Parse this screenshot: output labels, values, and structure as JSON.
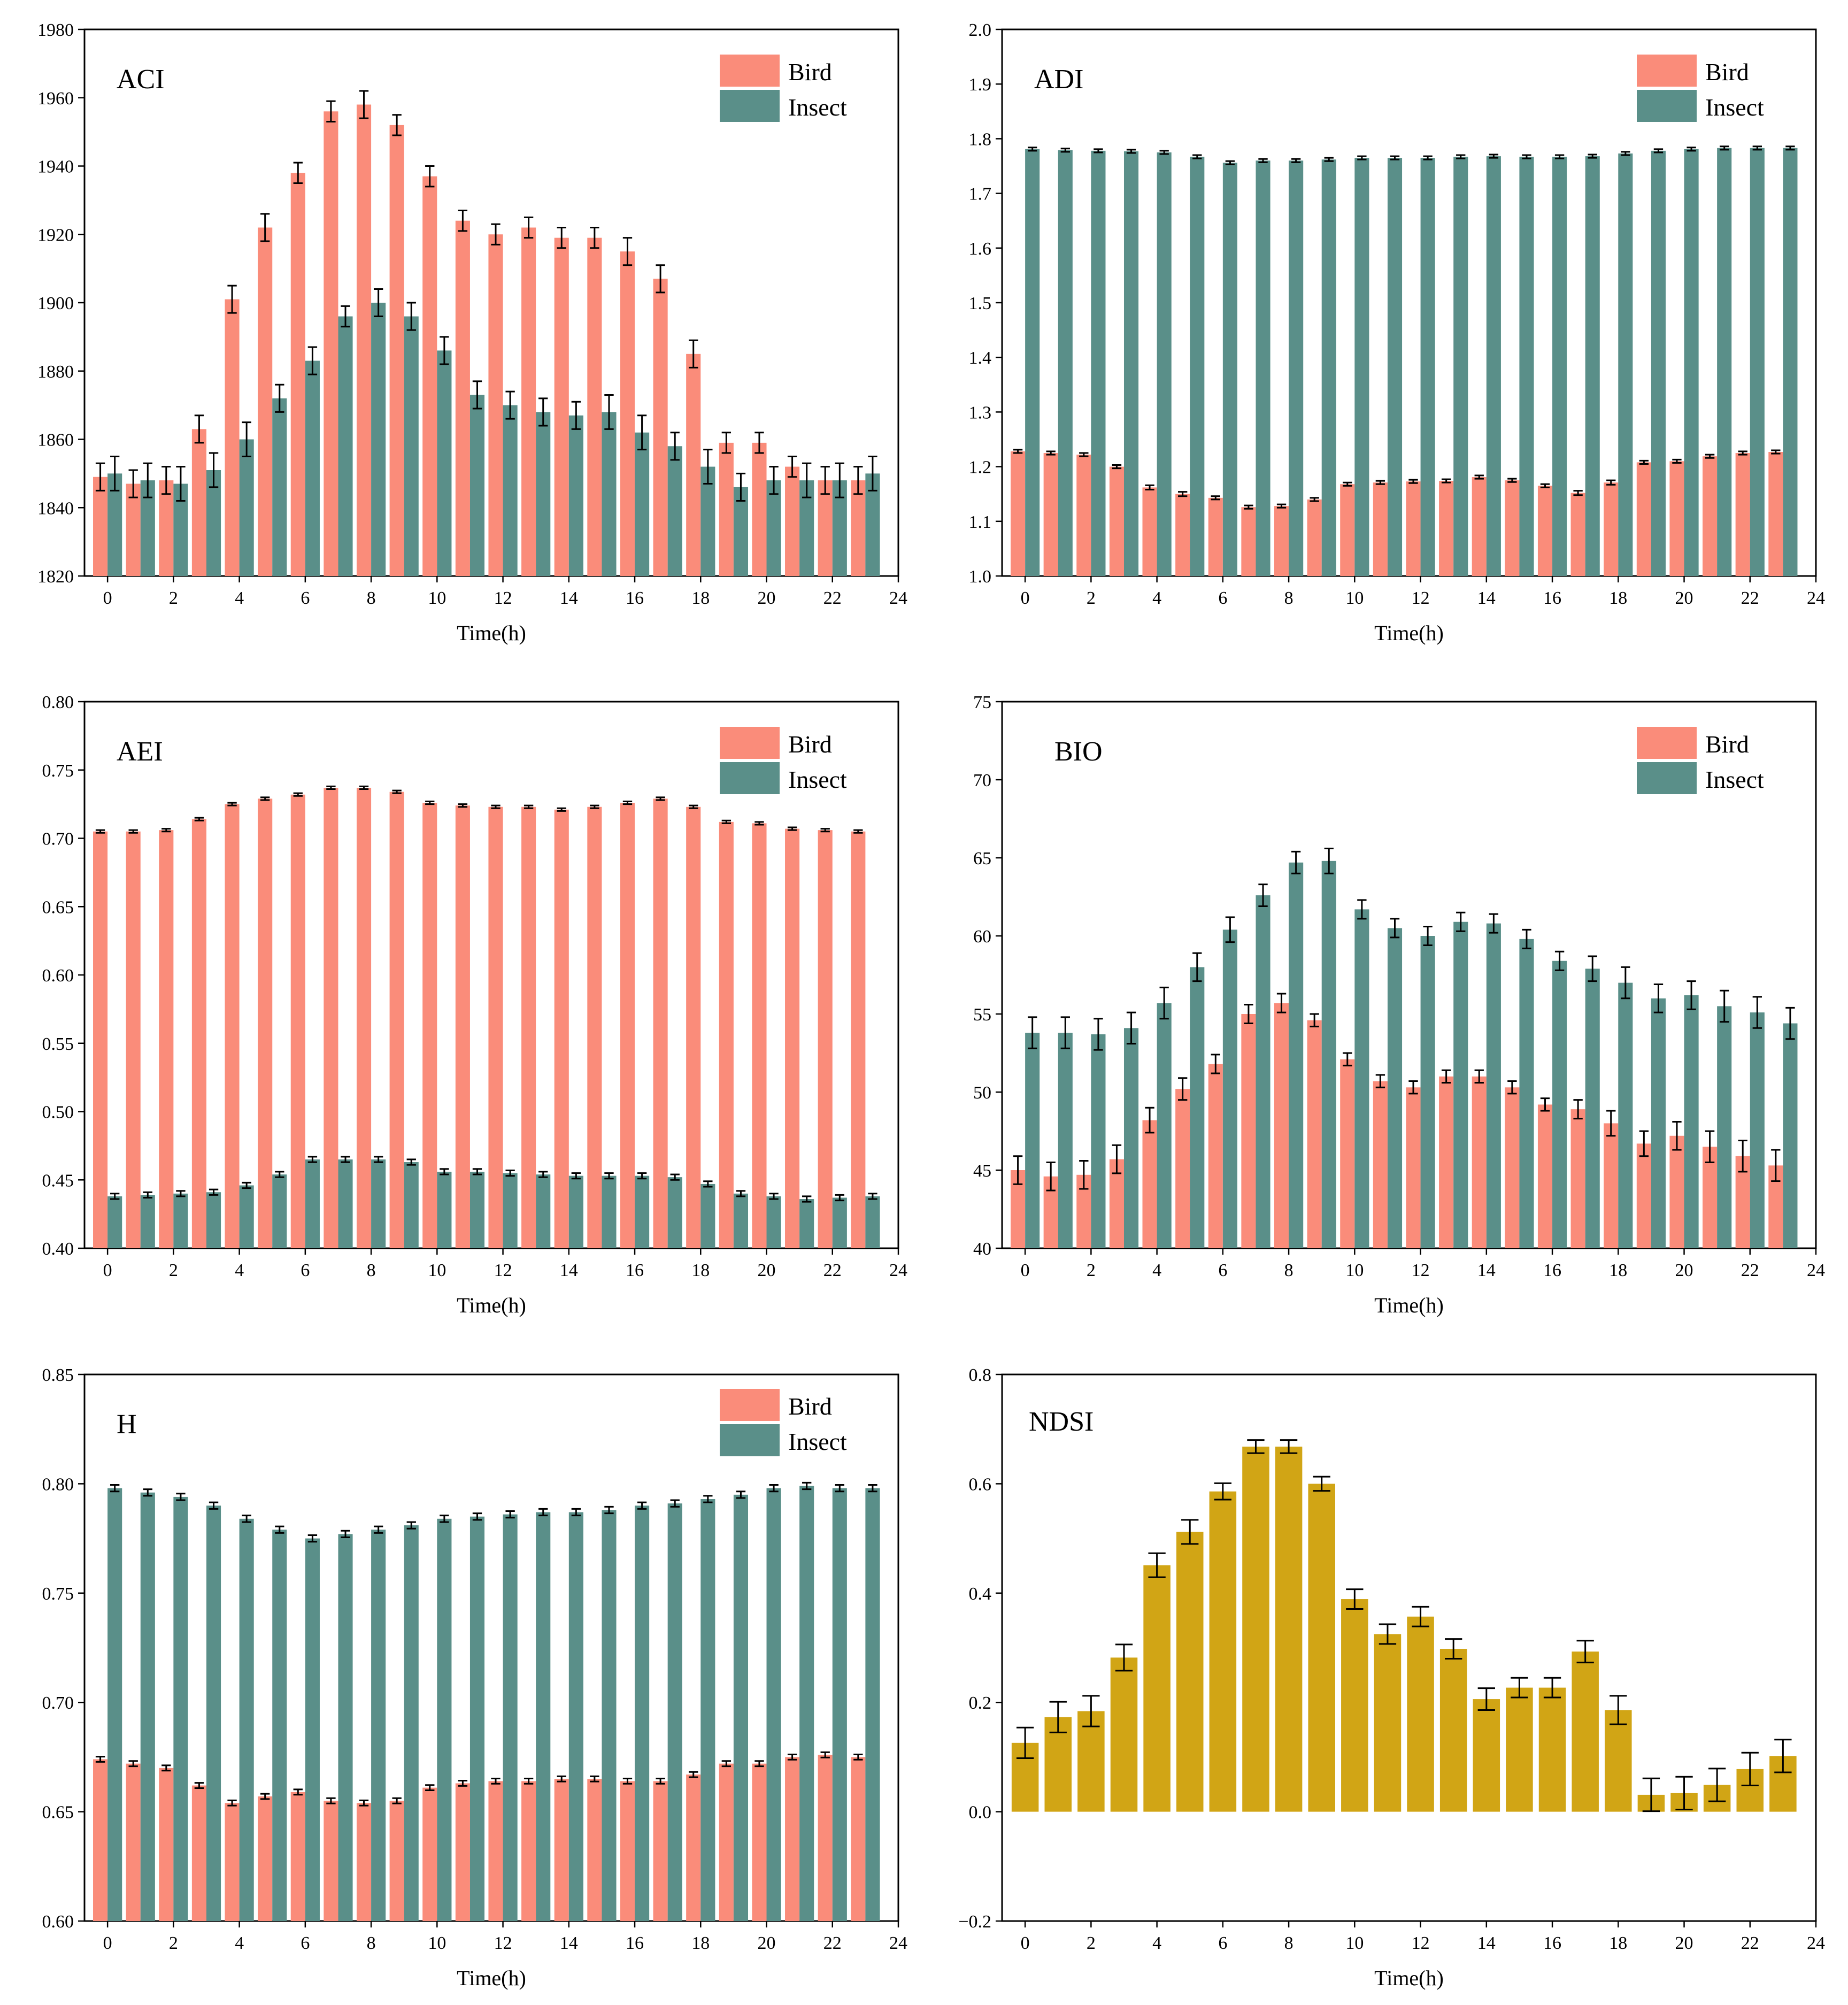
{
  "colors": {
    "bird": "#FA8C7A",
    "insect": "#5A8F89",
    "ndsi": "#D1A515",
    "axis": "#000000"
  },
  "legend": {
    "bird": "Bird",
    "insect": "Insect"
  },
  "chart_data": [
    {
      "type": "bar",
      "title": "ACI",
      "xlabel": "Time(h)",
      "ylabel": "",
      "xlim": [
        -0.7,
        24
      ],
      "xticks": [
        "0",
        "2",
        "4",
        "6",
        "8",
        "10",
        "12",
        "14",
        "16",
        "18",
        "20",
        "22",
        "24"
      ],
      "ylim": [
        1820,
        1980
      ],
      "yticks": [
        "1820",
        "1840",
        "1860",
        "1880",
        "1900",
        "1920",
        "1940",
        "1960",
        "1980"
      ],
      "legend_position": "top-right",
      "categories": [
        "0",
        "1",
        "2",
        "3",
        "4",
        "5",
        "6",
        "7",
        "8",
        "9",
        "10",
        "11",
        "12",
        "13",
        "14",
        "15",
        "16",
        "17",
        "18",
        "19",
        "20",
        "21",
        "22",
        "23"
      ],
      "series": [
        {
          "name": "Bird",
          "values": [
            1849,
            1847,
            1848,
            1863,
            1901,
            1922,
            1938,
            1956,
            1958,
            1952,
            1937,
            1924,
            1920,
            1922,
            1919,
            1919,
            1915,
            1907,
            1885,
            1859,
            1859,
            1852,
            1848,
            1848
          ],
          "errors": [
            4,
            4,
            4,
            4,
            4,
            4,
            3,
            3,
            4,
            3,
            3,
            3,
            3,
            3,
            3,
            3,
            4,
            4,
            4,
            3,
            3,
            3,
            4,
            4
          ]
        },
        {
          "name": "Insect",
          "values": [
            1850,
            1848,
            1847,
            1851,
            1860,
            1872,
            1883,
            1896,
            1900,
            1896,
            1886,
            1873,
            1870,
            1868,
            1867,
            1868,
            1862,
            1858,
            1852,
            1846,
            1848,
            1848,
            1848,
            1850
          ],
          "errors": [
            5,
            5,
            5,
            5,
            5,
            4,
            4,
            3,
            4,
            4,
            4,
            4,
            4,
            4,
            4,
            5,
            5,
            4,
            5,
            4,
            4,
            5,
            5,
            5
          ]
        }
      ]
    },
    {
      "type": "bar",
      "title": "ADI",
      "xlabel": "Time(h)",
      "ylabel": "",
      "xlim": [
        -0.7,
        24
      ],
      "xticks": [
        "0",
        "2",
        "4",
        "6",
        "8",
        "10",
        "12",
        "14",
        "16",
        "18",
        "20",
        "22",
        "24"
      ],
      "ylim": [
        1.0,
        2.0
      ],
      "yticks": [
        "1.0",
        "1.1",
        "1.2",
        "1.3",
        "1.4",
        "1.5",
        "1.6",
        "1.7",
        "1.8",
        "1.9",
        "2.0"
      ],
      "legend_position": "top-right",
      "categories": [
        "0",
        "1",
        "2",
        "3",
        "4",
        "5",
        "6",
        "7",
        "8",
        "9",
        "10",
        "11",
        "12",
        "13",
        "14",
        "15",
        "16",
        "17",
        "18",
        "19",
        "20",
        "21",
        "22",
        "23"
      ],
      "series": [
        {
          "name": "Bird",
          "values": [
            1.228,
            1.225,
            1.222,
            1.2,
            1.162,
            1.15,
            1.143,
            1.126,
            1.128,
            1.14,
            1.168,
            1.171,
            1.173,
            1.174,
            1.181,
            1.175,
            1.165,
            1.152,
            1.171,
            1.208,
            1.21,
            1.219,
            1.225,
            1.227
          ],
          "errors": [
            0.003,
            0.003,
            0.003,
            0.003,
            0.004,
            0.004,
            0.003,
            0.003,
            0.003,
            0.003,
            0.003,
            0.003,
            0.003,
            0.003,
            0.003,
            0.003,
            0.003,
            0.004,
            0.004,
            0.003,
            0.003,
            0.003,
            0.003,
            0.003
          ]
        },
        {
          "name": "Insect",
          "values": [
            1.781,
            1.779,
            1.778,
            1.777,
            1.775,
            1.767,
            1.756,
            1.76,
            1.76,
            1.762,
            1.765,
            1.765,
            1.765,
            1.767,
            1.768,
            1.767,
            1.767,
            1.768,
            1.773,
            1.778,
            1.781,
            1.783,
            1.783,
            1.783
          ],
          "errors": [
            0.003,
            0.003,
            0.003,
            0.003,
            0.003,
            0.003,
            0.003,
            0.003,
            0.003,
            0.003,
            0.003,
            0.003,
            0.003,
            0.003,
            0.003,
            0.003,
            0.003,
            0.003,
            0.003,
            0.003,
            0.003,
            0.003,
            0.003,
            0.003
          ]
        }
      ]
    },
    {
      "type": "bar",
      "title": "AEI",
      "xlabel": "Time(h)",
      "ylabel": "",
      "xlim": [
        -0.7,
        24
      ],
      "xticks": [
        "0",
        "2",
        "4",
        "6",
        "8",
        "10",
        "12",
        "14",
        "16",
        "18",
        "20",
        "22",
        "24"
      ],
      "ylim": [
        0.4,
        0.8
      ],
      "yticks": [
        "0.40",
        "0.45",
        "0.50",
        "0.55",
        "0.60",
        "0.65",
        "0.70",
        "0.75",
        "0.80"
      ],
      "legend_position": "top-right",
      "categories": [
        "0",
        "1",
        "2",
        "3",
        "4",
        "5",
        "6",
        "7",
        "8",
        "9",
        "10",
        "11",
        "12",
        "13",
        "14",
        "15",
        "16",
        "17",
        "18",
        "19",
        "20",
        "21",
        "22",
        "23"
      ],
      "series": [
        {
          "name": "Bird",
          "values": [
            0.705,
            0.705,
            0.706,
            0.714,
            0.725,
            0.729,
            0.732,
            0.737,
            0.737,
            0.734,
            0.726,
            0.724,
            0.723,
            0.723,
            0.721,
            0.723,
            0.726,
            0.729,
            0.723,
            0.712,
            0.711,
            0.707,
            0.706,
            0.705
          ],
          "errors": [
            0.001,
            0.001,
            0.001,
            0.001,
            0.001,
            0.001,
            0.001,
            0.001,
            0.001,
            0.001,
            0.001,
            0.001,
            0.001,
            0.001,
            0.001,
            0.001,
            0.001,
            0.001,
            0.001,
            0.001,
            0.001,
            0.001,
            0.001,
            0.001
          ]
        },
        {
          "name": "Insect",
          "values": [
            0.438,
            0.439,
            0.44,
            0.441,
            0.446,
            0.454,
            0.465,
            0.465,
            0.465,
            0.463,
            0.456,
            0.456,
            0.455,
            0.454,
            0.453,
            0.453,
            0.453,
            0.452,
            0.447,
            0.44,
            0.438,
            0.436,
            0.437,
            0.438
          ],
          "errors": [
            0.002,
            0.002,
            0.002,
            0.002,
            0.002,
            0.002,
            0.002,
            0.002,
            0.002,
            0.002,
            0.002,
            0.002,
            0.002,
            0.002,
            0.002,
            0.002,
            0.002,
            0.002,
            0.002,
            0.002,
            0.002,
            0.002,
            0.002,
            0.002
          ]
        }
      ]
    },
    {
      "type": "bar",
      "title": "BIO",
      "xlabel": "Time(h)",
      "ylabel": "",
      "xlim": [
        -0.7,
        24
      ],
      "xticks": [
        "0",
        "2",
        "4",
        "6",
        "8",
        "10",
        "12",
        "14",
        "16",
        "18",
        "20",
        "22",
        "24"
      ],
      "ylim": [
        40,
        75
      ],
      "yticks": [
        "40",
        "45",
        "50",
        "55",
        "60",
        "65",
        "70",
        "75"
      ],
      "legend_position": "top-right",
      "categories": [
        "0",
        "1",
        "2",
        "3",
        "4",
        "5",
        "6",
        "7",
        "8",
        "9",
        "10",
        "11",
        "12",
        "13",
        "14",
        "15",
        "16",
        "17",
        "18",
        "19",
        "20",
        "21",
        "22",
        "23"
      ],
      "series": [
        {
          "name": "Bird",
          "values": [
            45.0,
            44.6,
            44.7,
            45.7,
            48.2,
            50.2,
            51.8,
            55.0,
            55.7,
            54.6,
            52.1,
            50.7,
            50.3,
            51.0,
            51.0,
            50.3,
            49.2,
            48.9,
            48.0,
            46.7,
            47.2,
            46.5,
            45.9,
            45.3
          ],
          "errors": [
            0.9,
            0.9,
            0.9,
            0.9,
            0.8,
            0.7,
            0.6,
            0.6,
            0.6,
            0.4,
            0.4,
            0.4,
            0.4,
            0.4,
            0.4,
            0.4,
            0.4,
            0.6,
            0.8,
            0.8,
            0.9,
            1.0,
            1.0,
            1.0
          ]
        },
        {
          "name": "Insect",
          "values": [
            53.8,
            53.8,
            53.7,
            54.1,
            55.7,
            58.0,
            60.4,
            62.6,
            64.7,
            64.8,
            61.7,
            60.5,
            60.0,
            60.9,
            60.8,
            59.8,
            58.4,
            57.9,
            57.0,
            56.0,
            56.2,
            55.5,
            55.1,
            54.4
          ],
          "errors": [
            1.0,
            1.0,
            1.0,
            1.0,
            1.0,
            0.9,
            0.8,
            0.7,
            0.7,
            0.8,
            0.6,
            0.6,
            0.6,
            0.6,
            0.6,
            0.6,
            0.6,
            0.8,
            1.0,
            0.9,
            0.9,
            1.0,
            1.0,
            1.0
          ]
        }
      ]
    },
    {
      "type": "bar",
      "title": "H",
      "xlabel": "Time(h)",
      "ylabel": "",
      "xlim": [
        -0.7,
        24
      ],
      "xticks": [
        "0",
        "2",
        "4",
        "6",
        "8",
        "10",
        "12",
        "14",
        "16",
        "18",
        "20",
        "22",
        "24"
      ],
      "ylim": [
        0.6,
        0.85
      ],
      "yticks": [
        "0.60",
        "0.65",
        "0.70",
        "0.75",
        "0.80",
        "0.85"
      ],
      "legend_position": "top-right",
      "categories": [
        "0",
        "1",
        "2",
        "3",
        "4",
        "5",
        "6",
        "7",
        "8",
        "9",
        "10",
        "11",
        "12",
        "13",
        "14",
        "15",
        "16",
        "17",
        "18",
        "19",
        "20",
        "21",
        "22",
        "23"
      ],
      "series": [
        {
          "name": "Bird",
          "values": [
            0.674,
            0.672,
            0.67,
            0.662,
            0.654,
            0.657,
            0.659,
            0.655,
            0.654,
            0.655,
            0.661,
            0.663,
            0.664,
            0.664,
            0.665,
            0.665,
            0.664,
            0.664,
            0.667,
            0.672,
            0.672,
            0.675,
            0.676,
            0.675
          ],
          "errors": [
            0.0012,
            0.0012,
            0.0012,
            0.0012,
            0.0012,
            0.0012,
            0.0012,
            0.0012,
            0.0012,
            0.0012,
            0.0012,
            0.0012,
            0.0012,
            0.0012,
            0.0012,
            0.0012,
            0.0012,
            0.0012,
            0.0012,
            0.0012,
            0.0012,
            0.0012,
            0.0012,
            0.0012
          ]
        },
        {
          "name": "Insect",
          "values": [
            0.798,
            0.796,
            0.794,
            0.79,
            0.784,
            0.779,
            0.775,
            0.777,
            0.779,
            0.781,
            0.784,
            0.785,
            0.786,
            0.787,
            0.787,
            0.788,
            0.79,
            0.791,
            0.793,
            0.795,
            0.798,
            0.799,
            0.798,
            0.798
          ],
          "errors": [
            0.0015,
            0.0015,
            0.0015,
            0.0015,
            0.0015,
            0.0015,
            0.0015,
            0.0015,
            0.0015,
            0.0015,
            0.0015,
            0.0015,
            0.0015,
            0.0015,
            0.0015,
            0.0015,
            0.0015,
            0.0015,
            0.0015,
            0.0015,
            0.0015,
            0.0015,
            0.0015,
            0.0015
          ]
        }
      ]
    },
    {
      "type": "bar",
      "title": "NDSI",
      "xlabel": "Time(h)",
      "ylabel": "",
      "xlim": [
        -0.7,
        24
      ],
      "xticks": [
        "0",
        "2",
        "4",
        "6",
        "8",
        "10",
        "12",
        "14",
        "16",
        "18",
        "20",
        "22",
        "24"
      ],
      "ylim": [
        -0.2,
        0.8
      ],
      "yticks": [
        "−0.2",
        "0.0",
        "0.2",
        "0.4",
        "0.6",
        "0.8"
      ],
      "legend_position": "none",
      "categories": [
        "0",
        "1",
        "2",
        "3",
        "4",
        "5",
        "6",
        "7",
        "8",
        "9",
        "10",
        "11",
        "12",
        "13",
        "14",
        "15",
        "16",
        "17",
        "18",
        "19",
        "20",
        "21",
        "22",
        "23"
      ],
      "series": [
        {
          "name": "NDSI",
          "values": [
            0.126,
            0.173,
            0.184,
            0.282,
            0.451,
            0.512,
            0.586,
            0.668,
            0.668,
            0.6,
            0.389,
            0.325,
            0.357,
            0.298,
            0.206,
            0.227,
            0.227,
            0.293,
            0.186,
            0.031,
            0.034,
            0.049,
            0.078,
            0.102
          ],
          "errors": [
            0.028,
            0.028,
            0.028,
            0.024,
            0.022,
            0.022,
            0.015,
            0.012,
            0.012,
            0.013,
            0.018,
            0.018,
            0.018,
            0.018,
            0.02,
            0.018,
            0.018,
            0.02,
            0.026,
            0.03,
            0.03,
            0.03,
            0.03,
            0.03
          ]
        }
      ]
    }
  ]
}
